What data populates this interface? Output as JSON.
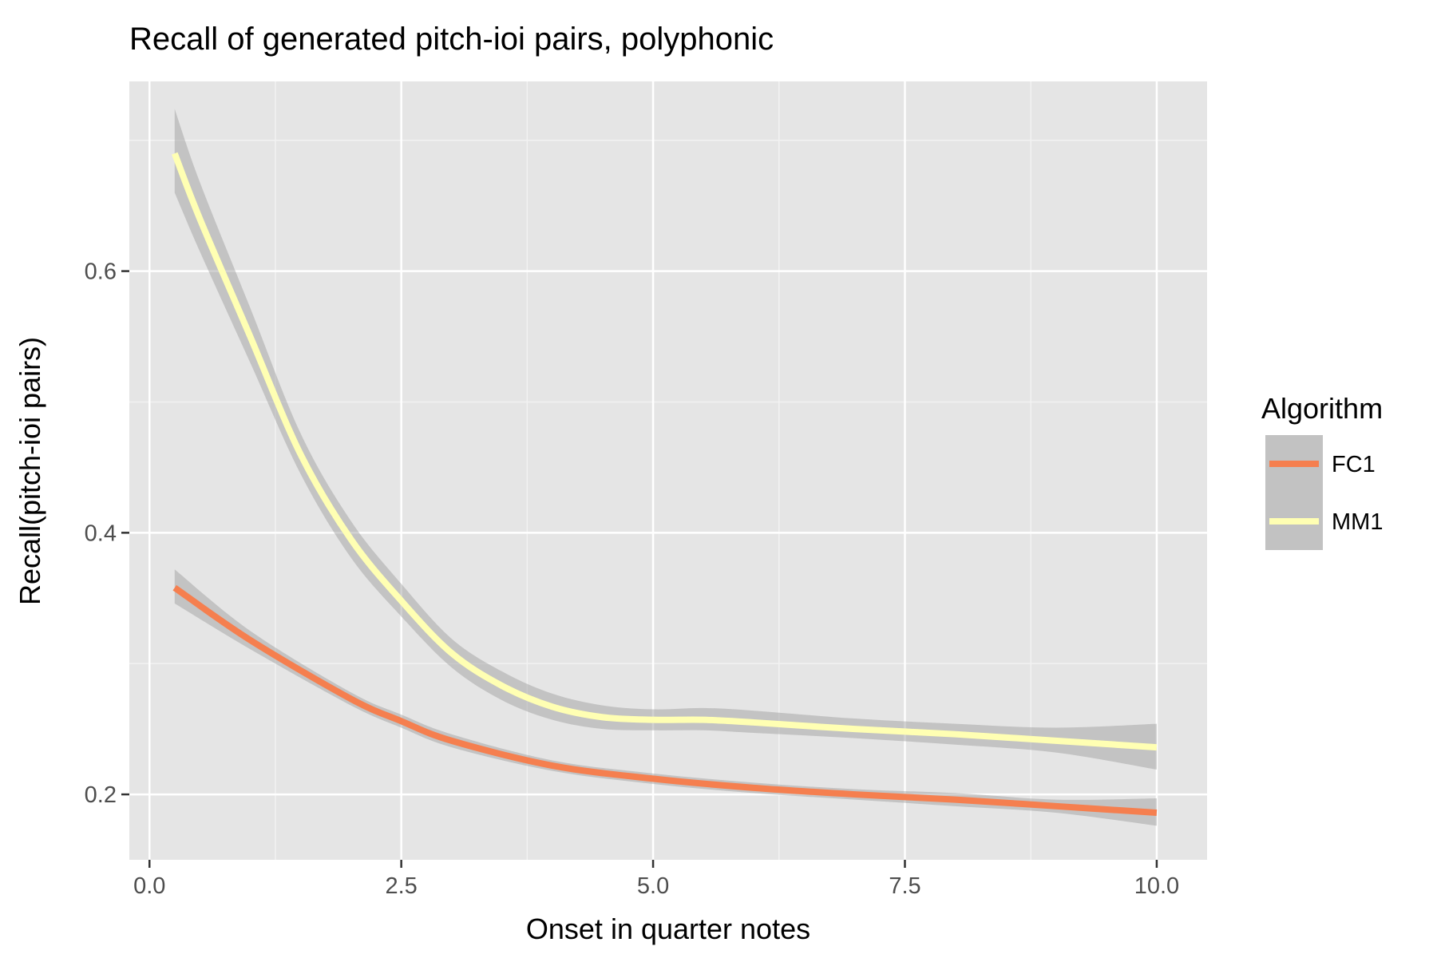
{
  "chart_data": {
    "type": "line",
    "title": "Recall of generated pitch-ioi pairs, polyphonic",
    "xlabel": "Onset in quarter notes",
    "ylabel": "Recall(pitch-ioi pairs)",
    "xlim": [
      -0.2,
      10.5
    ],
    "ylim": [
      0.15,
      0.745
    ],
    "x_ticks": [
      0.0,
      2.5,
      5.0,
      7.5,
      10.0
    ],
    "x_tick_labels": [
      "0.0",
      "2.5",
      "5.0",
      "7.5",
      "10.0"
    ],
    "y_ticks": [
      0.2,
      0.4,
      0.6
    ],
    "y_tick_labels": [
      "0.2",
      "0.4",
      "0.6"
    ],
    "grid": true,
    "legend": {
      "title": "Algorithm",
      "position": "right"
    },
    "series": [
      {
        "name": "FC1",
        "color": "#F57F4F",
        "x": [
          0.25,
          1.0,
          2.0,
          2.5,
          3.0,
          4.0,
          5.0,
          6.0,
          7.0,
          8.0,
          9.0,
          10.0
        ],
        "y": [
          0.358,
          0.318,
          0.273,
          0.256,
          0.241,
          0.222,
          0.212,
          0.205,
          0.2,
          0.196,
          0.191,
          0.186
        ],
        "lower": [
          0.346,
          0.311,
          0.268,
          0.251,
          0.236,
          0.218,
          0.208,
          0.201,
          0.196,
          0.191,
          0.186,
          0.176
        ],
        "upper": [
          0.372,
          0.325,
          0.278,
          0.261,
          0.246,
          0.226,
          0.216,
          0.209,
          0.204,
          0.201,
          0.196,
          0.197
        ]
      },
      {
        "name": "MM1",
        "color": "#FFFFB3",
        "x": [
          0.25,
          0.5,
          1.0,
          1.5,
          2.0,
          2.5,
          3.0,
          3.5,
          4.0,
          4.5,
          5.0,
          5.5,
          6.0,
          7.0,
          8.0,
          9.0,
          10.0
        ],
        "y": [
          0.69,
          0.64,
          0.55,
          0.46,
          0.395,
          0.348,
          0.308,
          0.283,
          0.267,
          0.259,
          0.257,
          0.257,
          0.255,
          0.25,
          0.246,
          0.241,
          0.236
        ],
        "lower": [
          0.66,
          0.615,
          0.53,
          0.445,
          0.381,
          0.336,
          0.297,
          0.272,
          0.257,
          0.25,
          0.249,
          0.249,
          0.247,
          0.243,
          0.238,
          0.232,
          0.219
        ],
        "upper": [
          0.724,
          0.668,
          0.572,
          0.476,
          0.409,
          0.361,
          0.319,
          0.294,
          0.277,
          0.268,
          0.265,
          0.266,
          0.264,
          0.258,
          0.254,
          0.251,
          0.254
        ]
      }
    ]
  }
}
